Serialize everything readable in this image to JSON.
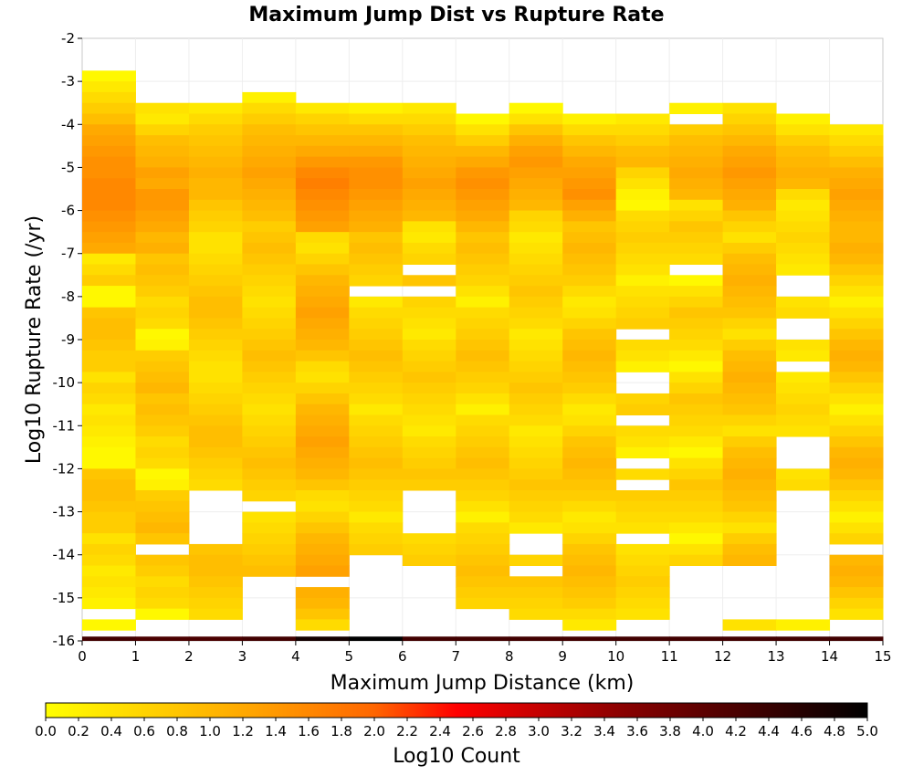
{
  "chart_data": {
    "type": "heatmap",
    "title": "Maximum Jump Dist vs Rupture Rate",
    "xlabel": "Maximum Jump Distance (km)",
    "ylabel": "Log10 Rupture Rate (/yr)",
    "xlim": [
      0,
      15
    ],
    "ylim": [
      -16,
      -2
    ],
    "x_ticks": [
      "0",
      "1",
      "2",
      "3",
      "4",
      "5",
      "6",
      "7",
      "8",
      "9",
      "10",
      "11",
      "12",
      "13",
      "14",
      "15"
    ],
    "y_ticks": [
      "-2",
      "-3",
      "-4",
      "-5",
      "-6",
      "-7",
      "-8",
      "-9",
      "-10",
      "-11",
      "-12",
      "-13",
      "-14",
      "-15",
      "-16"
    ],
    "x_bin_width": 1,
    "y_bin_height": 0.25,
    "colorbar": {
      "label": "Log10 Count",
      "range": [
        0,
        5
      ],
      "ticks": [
        "0.0",
        "0.2",
        "0.4",
        "0.6",
        "0.8",
        "1.0",
        "1.2",
        "1.4",
        "1.6",
        "1.8",
        "2.0",
        "2.2",
        "2.4",
        "2.6",
        "2.8",
        "3.0",
        "3.2",
        "3.4",
        "3.6",
        "3.8",
        "4.0",
        "4.2",
        "4.4",
        "4.6",
        "4.8",
        "5.0"
      ],
      "colors": [
        "#ffff00",
        "#ffa500",
        "#ff6600",
        "#ff0000",
        "#8b0000",
        "#000000"
      ]
    },
    "columns": [
      {
        "x_start": 0,
        "y_top": -2.75,
        "y_bottom": -16,
        "top_values": [
          0.1,
          0.3,
          0.5,
          0.7,
          0.9,
          1.2,
          1.3,
          1.4,
          1.5,
          1.5,
          1.6,
          1.6,
          1.6,
          1.5,
          1.4,
          1.3,
          1.2,
          0.3,
          0.5,
          0.7
        ],
        "bottom_values": [
          0.1,
          0.1,
          0.2,
          0.3,
          0.4,
          0.3,
          0.5,
          0.6,
          0.4,
          0.7,
          0.7,
          0.8,
          0.9,
          0.9,
          0.8
        ],
        "gaps": [
          [
            -15.5,
            -15.25
          ]
        ],
        "bottom_row": 4.3
      },
      {
        "x_start": 1,
        "y_top": -3.5,
        "y_bottom": -16,
        "top_values": [
          0.4,
          0.3,
          0.6,
          0.9,
          1.0,
          1.1,
          1.3,
          1.2,
          1.4,
          1.4,
          1.3,
          1.2,
          1.0,
          1.1
        ],
        "bottom_values": [
          0.2,
          0.1,
          0.5,
          0.6,
          0.5,
          0.7,
          0.8,
          0.9,
          0.8,
          1.0,
          0.9,
          0.8,
          0.7
        ],
        "gaps": [
          [
            -14.0,
            -13.75
          ],
          [
            -16.0,
            -15.5
          ]
        ],
        "bottom_row": 4.2
      },
      {
        "x_start": 2,
        "y_top": -3.5,
        "y_bottom": -16,
        "top_values": [
          0.3,
          0.5,
          0.7,
          0.8,
          0.9,
          1.0,
          1.1,
          1.0,
          1.0,
          0.8,
          0.7,
          0.6
        ],
        "bottom_values": [
          0.4,
          0.5,
          0.6,
          0.7,
          0.8,
          0.9,
          0.9,
          0.8,
          0.7,
          0.6,
          0.5,
          0.4
        ],
        "gaps": [
          [
            -13.75,
            -12.5
          ],
          [
            -16.0,
            -15.5
          ]
        ],
        "bottom_row": 4.2
      },
      {
        "x_start": 3,
        "y_top": -3.25,
        "y_bottom": -16,
        "top_values": [
          0.2,
          0.5,
          0.7,
          0.9,
          1.0,
          1.1,
          1.2,
          1.3,
          1.2,
          1.1,
          1.0,
          0.9
        ],
        "bottom_values": [
          0.4,
          0.5,
          0.6,
          0.7,
          0.8,
          0.9,
          0.8,
          0.7,
          0.6,
          0.5
        ],
        "gaps": [
          [
            -13.0,
            -12.75
          ],
          [
            -16.0,
            -14.5
          ]
        ],
        "bottom_row": 4.3
      },
      {
        "x_start": 4,
        "y_top": -3.5,
        "y_bottom": -16,
        "top_values": [
          0.3,
          0.6,
          0.8,
          1.0,
          1.2,
          1.4,
          1.6,
          1.7,
          1.6,
          1.5,
          1.4,
          1.3
        ],
        "bottom_values": [
          0.5,
          0.8,
          1.0,
          1.1,
          1.2,
          1.3,
          1.2,
          1.1,
          1.0,
          0.8,
          0.6,
          0.4
        ],
        "gaps": [
          [
            -14.75,
            -14.5
          ]
        ],
        "bottom_row": 4.8
      },
      {
        "x_start": 5,
        "y_top": -3.5,
        "y_bottom": -16,
        "top_values": [
          0.2,
          0.5,
          0.8,
          1.0,
          1.2,
          1.4,
          1.5,
          1.5,
          1.4,
          1.3,
          1.2,
          1.1
        ],
        "bottom_values": [
          0.3,
          0.5,
          0.6,
          0.7,
          0.8,
          0.9,
          0.8,
          0.7,
          0.6,
          0.5
        ],
        "gaps": [
          [
            -8.0,
            -7.75
          ],
          [
            -16.0,
            -14.0
          ]
        ],
        "bottom_row": 5.0
      },
      {
        "x_start": 6,
        "y_top": -3.5,
        "y_bottom": -16,
        "top_values": [
          0.3,
          0.5,
          0.7,
          0.9,
          1.0,
          1.1,
          1.2,
          1.3,
          1.2,
          1.1,
          1.0
        ],
        "bottom_values": [
          0.3,
          0.4,
          0.5,
          0.6,
          0.7,
          0.8,
          0.7,
          0.6,
          0.5
        ],
        "gaps": [
          [
            -7.5,
            -7.25
          ],
          [
            -8.0,
            -7.75
          ],
          [
            -13.5,
            -12.5
          ],
          [
            -16.0,
            -14.25
          ]
        ],
        "bottom_row": 4.3
      },
      {
        "x_start": 7,
        "y_top": -3.75,
        "y_bottom": -16,
        "top_values": [
          0.1,
          0.4,
          0.7,
          1.0,
          1.2,
          1.4,
          1.5,
          1.4,
          1.3,
          1.2,
          1.0
        ],
        "bottom_values": [
          0.2,
          0.4,
          0.6,
          0.7,
          0.8,
          0.9,
          0.8,
          0.7,
          0.6,
          0.5
        ],
        "gaps": [
          [
            -16.0,
            -15.25
          ]
        ],
        "bottom_row": 4.3
      },
      {
        "x_start": 8,
        "y_top": -3.5,
        "y_bottom": -16,
        "top_values": [
          0.1,
          0.4,
          0.8,
          1.1,
          1.3,
          1.4,
          1.3,
          1.2,
          1.1,
          1.0
        ],
        "bottom_values": [
          0.3,
          0.5,
          0.6,
          0.7,
          0.8,
          0.7,
          0.6,
          0.5,
          0.4
        ],
        "gaps": [
          [
            -14.0,
            -13.5
          ],
          [
            -14.5,
            -14.25
          ],
          [
            -16.0,
            -15.5
          ]
        ],
        "bottom_row": 4.3
      },
      {
        "x_start": 9,
        "y_top": -3.75,
        "y_bottom": -16,
        "top_values": [
          0.2,
          0.5,
          0.8,
          1.0,
          1.2,
          1.3,
          1.4,
          1.5,
          1.3,
          1.1
        ],
        "bottom_values": [
          0.3,
          0.5,
          0.7,
          0.8,
          0.9,
          1.0,
          0.9,
          0.8,
          0.6,
          0.4
        ],
        "gaps": [
          [
            -16.0,
            -15.75
          ]
        ],
        "bottom_row": 4.3
      },
      {
        "x_start": 10,
        "y_top": -3.75,
        "y_bottom": -16,
        "top_values": [
          0.3,
          0.5,
          0.7,
          0.9,
          1.0,
          0.6,
          0.4,
          0.2,
          0.1
        ],
        "bottom_values": [
          0.2,
          0.4,
          0.5,
          0.6,
          0.7,
          0.6,
          0.5,
          0.4
        ],
        "gaps": [
          [
            -9.0,
            -8.75
          ],
          [
            -10.25,
            -9.75
          ],
          [
            -11.0,
            -10.75
          ],
          [
            -12.0,
            -11.75
          ],
          [
            -12.5,
            -12.25
          ],
          [
            -13.75,
            -13.5
          ],
          [
            -16.0,
            -15.5
          ]
        ],
        "bottom_row": 4.3
      },
      {
        "x_start": 11,
        "y_top": -3.5,
        "y_bottom": -16,
        "top_values": [
          0.2,
          0.5,
          0.7,
          0.9,
          1.0,
          1.1,
          1.2,
          1.1,
          1.0
        ],
        "bottom_values": [
          0.1,
          0.3,
          0.5,
          0.6,
          0.7,
          0.8,
          0.6,
          0.4
        ],
        "gaps": [
          [
            -4.0,
            -3.75
          ],
          [
            -7.5,
            -7.25
          ],
          [
            -16.0,
            -14.25
          ]
        ],
        "bottom_row": 4.3
      },
      {
        "x_start": 12,
        "y_top": -3.5,
        "y_bottom": -16,
        "top_values": [
          0.4,
          0.6,
          0.8,
          1.0,
          1.2,
          1.3,
          1.4,
          1.3,
          1.2,
          1.1
        ],
        "bottom_values": [
          0.4,
          0.6,
          0.8,
          0.9,
          1.0,
          1.1,
          1.0,
          0.9,
          0.7
        ],
        "gaps": [
          [
            -15.5,
            -14.25
          ]
        ],
        "bottom_row": 4.3
      },
      {
        "x_start": 13,
        "y_top": -3.75,
        "y_bottom": -16,
        "top_values": [
          0.2,
          0.4,
          0.7,
          0.9,
          1.0,
          1.1,
          1.0,
          0.5,
          0.3
        ],
        "bottom_values": [
          0.2,
          0.3,
          0.4,
          0.5,
          0.6,
          0.5,
          0.4,
          0.3
        ],
        "gaps": [
          [
            -8.0,
            -7.5
          ],
          [
            -9.0,
            -8.5
          ],
          [
            -9.75,
            -9.5
          ],
          [
            -12.0,
            -11.25
          ],
          [
            -15.5,
            -12.5
          ]
        ],
        "bottom_row": 4.3
      },
      {
        "x_start": 14,
        "y_top": -4.0,
        "y_bottom": -16,
        "top_values": [
          0.3,
          0.5,
          0.7,
          0.9,
          1.1,
          1.2,
          1.3,
          1.2,
          1.1,
          1.0
        ],
        "bottom_values": [
          0.2,
          0.4,
          0.6,
          0.8,
          1.0,
          1.1,
          1.0,
          0.8,
          0.6,
          0.4
        ],
        "gaps": [
          [
            -14.0,
            -13.75
          ],
          [
            -16.0,
            -15.5
          ]
        ],
        "bottom_row": 4.3
      }
    ]
  }
}
